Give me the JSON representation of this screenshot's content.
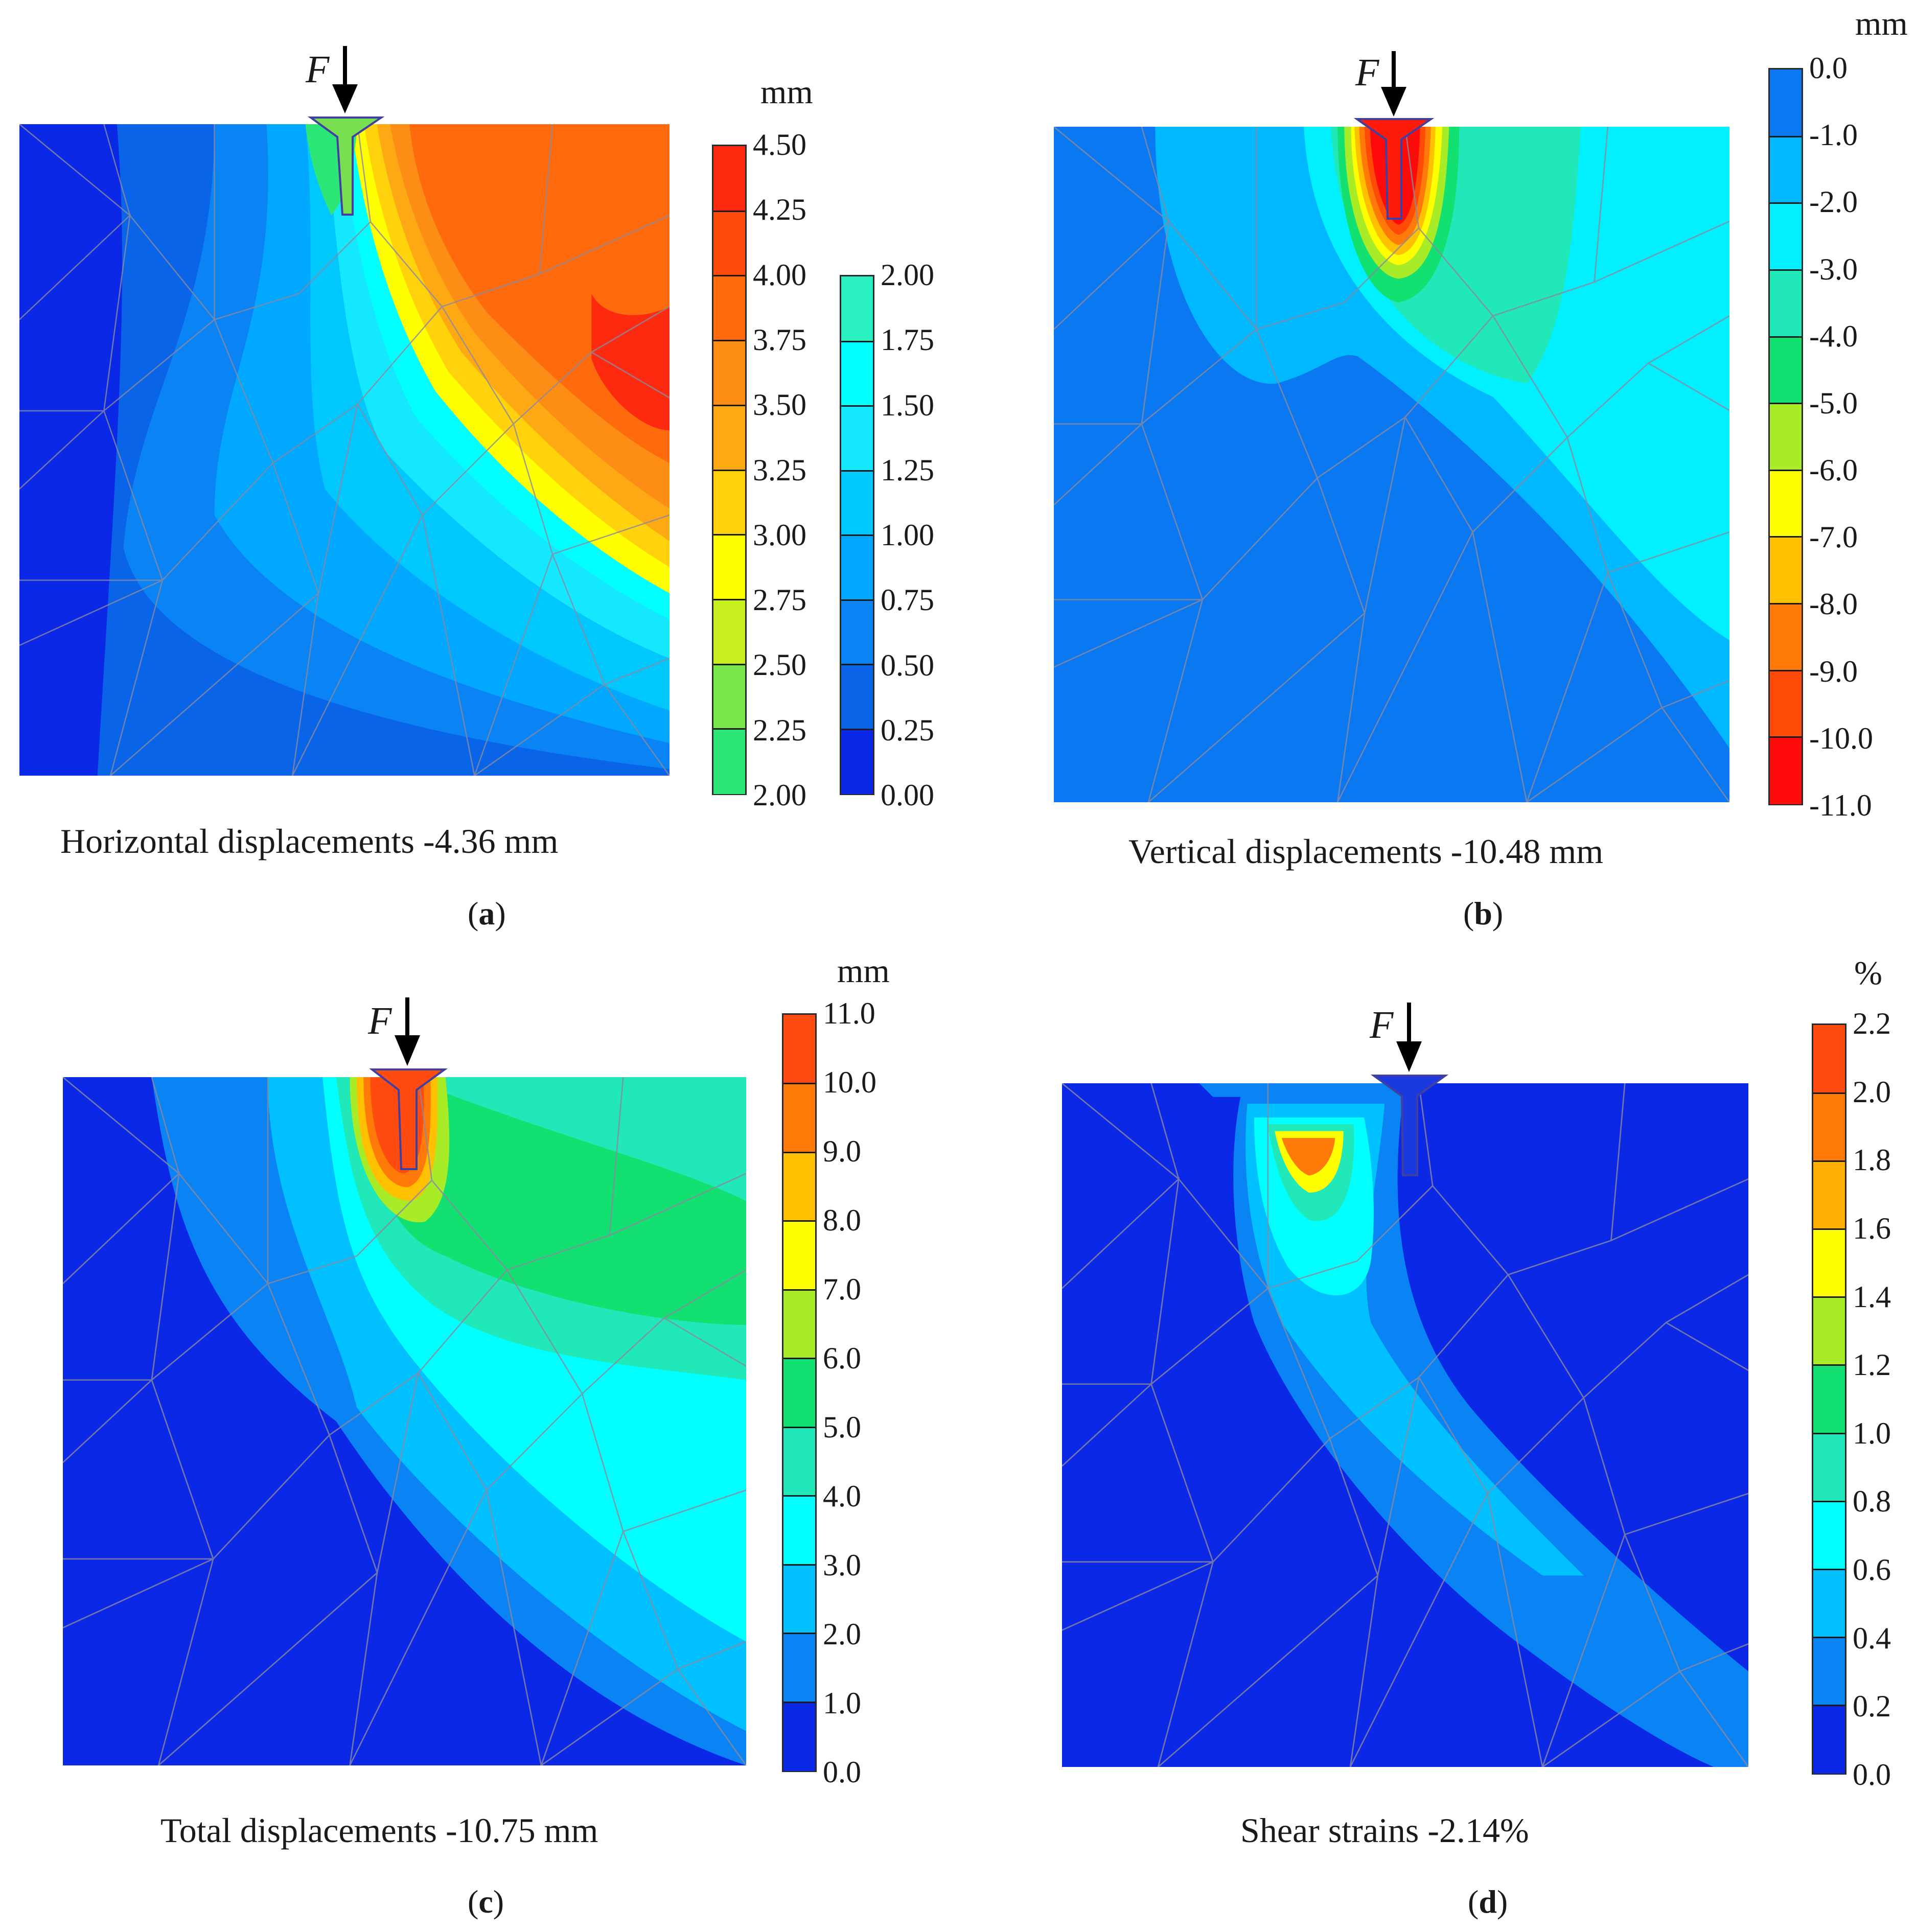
{
  "figure": {
    "force_label": "F",
    "panels": [
      {
        "id": "a",
        "title": "Horizontal displacements",
        "max_value": "-4.36 mm",
        "sublabel_open": "(",
        "sublabel_letter": "a",
        "sublabel_close": ")",
        "unit": "mm",
        "scales": [
          {
            "ticks": [
              "4.50",
              "4.25",
              "4.00",
              "3.75",
              "3.50",
              "3.25",
              "3.00",
              "2.75",
              "2.50",
              "2.25",
              "2.00"
            ],
            "colors": [
              "#fe2a10",
              "#fe4a0a",
              "#fe6a0c",
              "#fe8d16",
              "#fea914",
              "#ffd20c",
              "#ffff00",
              "#c8f01e",
              "#7ae84a",
              "#2ce678"
            ]
          },
          {
            "ticks": [
              "2.00",
              "1.75",
              "1.50",
              "1.25",
              "1.00",
              "0.75",
              "0.50",
              "0.25",
              "0.00"
            ],
            "colors": [
              "#2af0c0",
              "#00ffff",
              "#14e8ff",
              "#00c8ff",
              "#00a8ff",
              "#0a84f5",
              "#0a64e8",
              "#0a28e6"
            ]
          }
        ]
      },
      {
        "id": "b",
        "title": "Vertical displacements",
        "max_value": "-10.48 mm",
        "sublabel_open": "(",
        "sublabel_letter": "b",
        "sublabel_close": ")",
        "unit": "mm",
        "scales": [
          {
            "ticks": [
              "0.0",
              "-1.0",
              "-2.0",
              "-3.0",
              "-4.0",
              "-5.0",
              "-6.0",
              "-7.0",
              "-8.0",
              "-9.0",
              "-10.0",
              "-11.0"
            ],
            "colors": [
              "#0a78f0",
              "#00b8ff",
              "#00f0ff",
              "#20e8b8",
              "#12e070",
              "#a8ec28",
              "#ffff00",
              "#ffc000",
              "#ff7a08",
              "#ff4a08",
              "#ff0a0a"
            ]
          }
        ]
      },
      {
        "id": "c",
        "title": "Total displacements",
        "max_value": "-10.75 mm",
        "sublabel_open": "(",
        "sublabel_letter": "c",
        "sublabel_close": ")",
        "unit": "mm",
        "scales": [
          {
            "ticks": [
              "11.0",
              "10.0",
              "9.0",
              "8.0",
              "7.0",
              "6.0",
              "5.0",
              "4.0",
              "3.0",
              "2.0",
              "1.0",
              "0.0"
            ],
            "colors": [
              "#ff4a10",
              "#ff7a08",
              "#ffc000",
              "#ffff00",
              "#a8ec28",
              "#12e070",
              "#20e8b8",
              "#00ffff",
              "#00c0ff",
              "#0a84f5",
              "#0a28e6"
            ]
          }
        ]
      },
      {
        "id": "d",
        "title": "Shear strains",
        "max_value": "-2.14%",
        "sublabel_open": "(",
        "sublabel_letter": "d",
        "sublabel_close": ")",
        "unit": "%",
        "scales": [
          {
            "ticks": [
              "2.2",
              "2.0",
              "1.8",
              "1.6",
              "1.4",
              "1.2",
              "1.0",
              "0.8",
              "0.6",
              "0.4",
              "0.2",
              "0.0"
            ],
            "colors": [
              "#ff4a10",
              "#ff7a08",
              "#ffb000",
              "#ffff00",
              "#a8ec28",
              "#12e070",
              "#20e8b8",
              "#00ffff",
              "#00c0ff",
              "#0a84f5",
              "#0a28e6"
            ]
          }
        ]
      }
    ]
  }
}
